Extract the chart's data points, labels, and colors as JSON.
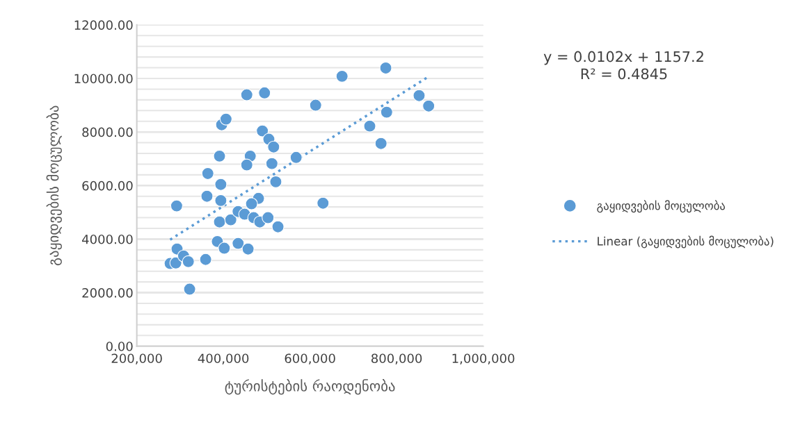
{
  "chart_data": {
    "type": "scatter",
    "xlabel": "ტურისტების რაოდენობა",
    "ylabel": "გაყიდვების მოცულობა",
    "annotations": [
      "y = 0.0102x + 1157.2\nR² = 0.4845"
    ],
    "xlim": [
      200000,
      1000000
    ],
    "xticks": [
      {
        "value": 200000,
        "label": "200,000"
      },
      {
        "value": 400000,
        "label": "400,000"
      },
      {
        "value": 600000,
        "label": "600,000"
      },
      {
        "value": 800000,
        "label": "800,000"
      },
      {
        "value": 1000000,
        "label": "1,000,000"
      }
    ],
    "ylim": [
      0,
      12000
    ],
    "yticks": [
      {
        "value": 0,
        "label": "0.00"
      },
      {
        "value": 400,
        "label": null
      },
      {
        "value": 800,
        "label": null
      },
      {
        "value": 1200,
        "label": null
      },
      {
        "value": 1600,
        "label": null
      },
      {
        "value": 2000,
        "label": "2000.00"
      },
      {
        "value": 2400,
        "label": null
      },
      {
        "value": 2800,
        "label": null
      },
      {
        "value": 3200,
        "label": null
      },
      {
        "value": 3600,
        "label": null
      },
      {
        "value": 4000,
        "label": "4000.00"
      },
      {
        "value": 4400,
        "label": null
      },
      {
        "value": 4800,
        "label": null
      },
      {
        "value": 5200,
        "label": null
      },
      {
        "value": 5600,
        "label": null
      },
      {
        "value": 6000,
        "label": "6000.00"
      },
      {
        "value": 6400,
        "label": null
      },
      {
        "value": 6800,
        "label": null
      },
      {
        "value": 7200,
        "label": null
      },
      {
        "value": 7600,
        "label": null
      },
      {
        "value": 8000,
        "label": "8000.00"
      },
      {
        "value": 8400,
        "label": null
      },
      {
        "value": 8800,
        "label": null
      },
      {
        "value": 9200,
        "label": null
      },
      {
        "value": 9600,
        "label": null
      },
      {
        "value": 10000,
        "label": "10000.00"
      },
      {
        "value": 10400,
        "label": null
      },
      {
        "value": 10800,
        "label": null
      },
      {
        "value": 11200,
        "label": null
      },
      {
        "value": 11600,
        "label": null
      },
      {
        "value": 12000,
        "label": "12000.00"
      }
    ],
    "grid": "y",
    "legend": "right",
    "series": [
      {
        "name": "გაყიდვების მოცულობა",
        "color": "#5b9bd5",
        "marker": "circle",
        "x": [
          277000,
          290000,
          293000,
          308000,
          319000,
          292000,
          322000,
          359000,
          362000,
          364000,
          391000,
          394000,
          394000,
          391000,
          396000,
          406000,
          386000,
          402000,
          417000,
          434000,
          449000,
          434000,
          457000,
          454000,
          495000,
          490000,
          505000,
          516000,
          462000,
          454000,
          512000,
          521000,
          568000,
          481000,
          465000,
          470000,
          484000,
          503000,
          526000,
          674000,
          775000,
          613000,
          852000,
          874000,
          777000,
          738000,
          764000,
          630000
        ],
        "values": [
          3090,
          3110,
          3630,
          3370,
          3160,
          5240,
          2130,
          3240,
          5600,
          6450,
          7100,
          6040,
          5440,
          4640,
          8270,
          8480,
          3910,
          3660,
          4720,
          5030,
          4930,
          3840,
          3630,
          9390,
          9460,
          8040,
          7730,
          7440,
          7100,
          6770,
          6820,
          6140,
          7050,
          5520,
          5320,
          4800,
          4640,
          4800,
          4460,
          10080,
          10390,
          9000,
          9360,
          8970,
          8740,
          8220,
          7570,
          5340
        ]
      },
      {
        "type": "line",
        "name": "Linear (გაყიდვების მოცულობა)",
        "color": "#5b9bd5",
        "line_style": "dotted",
        "marker": "none",
        "x": [
          277000,
          874000
        ],
        "values": [
          3980,
          10070
        ]
      }
    ]
  }
}
